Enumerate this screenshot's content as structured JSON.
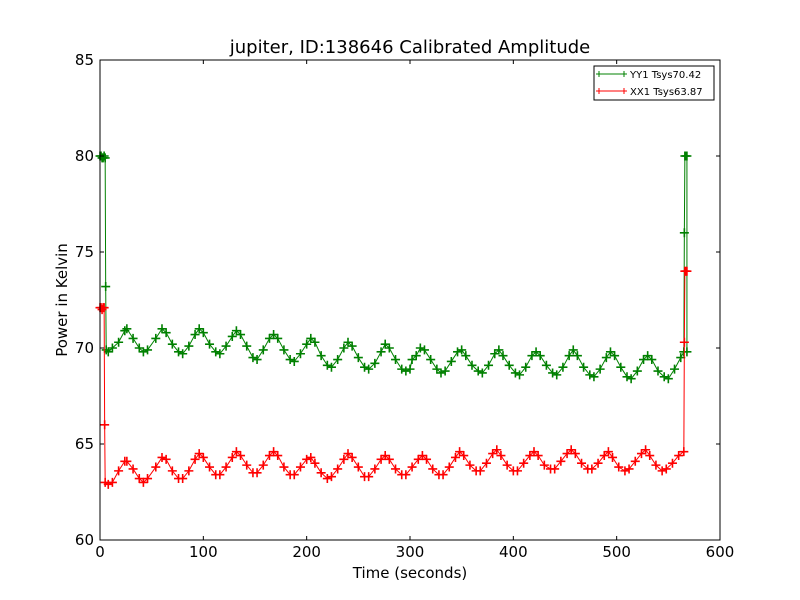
{
  "chart_data": {
    "type": "line",
    "title": "jupiter, ID:138646 Calibrated Amplitude",
    "xlabel": "Time (seconds)",
    "ylabel": "Power in Kelvin",
    "xlim": [
      0,
      600
    ],
    "ylim": [
      60,
      85
    ],
    "xticks": [
      0,
      100,
      200,
      300,
      400,
      500,
      600
    ],
    "yticks": [
      60,
      65,
      70,
      75,
      80,
      85
    ],
    "grid": false,
    "legend_position": "top-right",
    "series": [
      {
        "name": "YY1 Tsys70.42",
        "color": "#008000",
        "marker": "+",
        "points": [
          [
            0,
            80.0
          ],
          [
            1,
            80.0
          ],
          [
            2,
            79.9
          ],
          [
            3,
            79.9
          ],
          [
            4,
            80.0
          ],
          [
            5,
            79.9
          ],
          [
            5.5,
            73.2
          ],
          [
            6,
            69.9
          ],
          [
            8,
            69.8
          ],
          [
            12,
            70.0
          ],
          [
            18,
            70.3
          ],
          [
            24,
            70.9
          ],
          [
            26,
            71.0
          ],
          [
            32,
            70.5
          ],
          [
            38,
            70.0
          ],
          [
            42,
            69.8
          ],
          [
            46,
            69.9
          ],
          [
            54,
            70.5
          ],
          [
            60,
            71.0
          ],
          [
            64,
            70.8
          ],
          [
            70,
            70.2
          ],
          [
            76,
            69.8
          ],
          [
            80,
            69.7
          ],
          [
            86,
            70.1
          ],
          [
            92,
            70.7
          ],
          [
            96,
            71.0
          ],
          [
            100,
            70.8
          ],
          [
            106,
            70.2
          ],
          [
            112,
            69.8
          ],
          [
            116,
            69.7
          ],
          [
            122,
            70.1
          ],
          [
            128,
            70.6
          ],
          [
            132,
            70.9
          ],
          [
            136,
            70.7
          ],
          [
            142,
            70.1
          ],
          [
            148,
            69.5
          ],
          [
            152,
            69.4
          ],
          [
            158,
            69.9
          ],
          [
            164,
            70.5
          ],
          [
            168,
            70.7
          ],
          [
            172,
            70.5
          ],
          [
            178,
            69.9
          ],
          [
            184,
            69.4
          ],
          [
            188,
            69.3
          ],
          [
            194,
            69.7
          ],
          [
            200,
            70.2
          ],
          [
            204,
            70.5
          ],
          [
            208,
            70.3
          ],
          [
            214,
            69.6
          ],
          [
            220,
            69.1
          ],
          [
            224,
            69.0
          ],
          [
            230,
            69.4
          ],
          [
            236,
            70.0
          ],
          [
            240,
            70.3
          ],
          [
            244,
            70.1
          ],
          [
            250,
            69.5
          ],
          [
            256,
            69.0
          ],
          [
            260,
            68.9
          ],
          [
            266,
            69.2
          ],
          [
            272,
            69.8
          ],
          [
            276,
            70.2
          ],
          [
            280,
            70.0
          ],
          [
            286,
            69.4
          ],
          [
            292,
            68.9
          ],
          [
            296,
            68.8
          ],
          [
            300,
            68.9
          ],
          [
            302,
            69.4
          ],
          [
            306,
            69.6
          ],
          [
            310,
            70.0
          ],
          [
            314,
            69.9
          ],
          [
            320,
            69.4
          ],
          [
            326,
            68.9
          ],
          [
            330,
            68.7
          ],
          [
            334,
            68.8
          ],
          [
            340,
            69.3
          ],
          [
            346,
            69.8
          ],
          [
            350,
            69.9
          ],
          [
            354,
            69.6
          ],
          [
            360,
            69.1
          ],
          [
            366,
            68.8
          ],
          [
            370,
            68.7
          ],
          [
            376,
            69.1
          ],
          [
            382,
            69.7
          ],
          [
            386,
            69.9
          ],
          [
            390,
            69.6
          ],
          [
            396,
            69.1
          ],
          [
            402,
            68.7
          ],
          [
            406,
            68.6
          ],
          [
            412,
            69.0
          ],
          [
            418,
            69.6
          ],
          [
            422,
            69.8
          ],
          [
            426,
            69.6
          ],
          [
            432,
            69.1
          ],
          [
            438,
            68.7
          ],
          [
            442,
            68.6
          ],
          [
            448,
            69.0
          ],
          [
            454,
            69.6
          ],
          [
            458,
            69.9
          ],
          [
            462,
            69.6
          ],
          [
            468,
            69.0
          ],
          [
            474,
            68.6
          ],
          [
            478,
            68.5
          ],
          [
            484,
            68.9
          ],
          [
            490,
            69.5
          ],
          [
            494,
            69.8
          ],
          [
            498,
            69.6
          ],
          [
            504,
            69.0
          ],
          [
            510,
            68.5
          ],
          [
            514,
            68.4
          ],
          [
            520,
            68.8
          ],
          [
            526,
            69.4
          ],
          [
            530,
            69.6
          ],
          [
            534,
            69.4
          ],
          [
            540,
            68.8
          ],
          [
            546,
            68.5
          ],
          [
            550,
            68.4
          ],
          [
            556,
            68.9
          ],
          [
            562,
            69.5
          ],
          [
            565,
            69.8
          ],
          [
            565.5,
            76.0
          ],
          [
            566,
            80.0
          ],
          [
            567,
            80.0
          ],
          [
            568,
            80.0
          ],
          [
            568,
            69.8
          ]
        ]
      },
      {
        "name": "XX1 Tsys63.87",
        "color": "#ff0000",
        "marker": "+",
        "points": [
          [
            0,
            72.1
          ],
          [
            1,
            72.1
          ],
          [
            2,
            72.0
          ],
          [
            3,
            72.1
          ],
          [
            4,
            72.1
          ],
          [
            4.5,
            66.0
          ],
          [
            5,
            63.0
          ],
          [
            8,
            62.9
          ],
          [
            12,
            63.0
          ],
          [
            18,
            63.6
          ],
          [
            24,
            64.1
          ],
          [
            26,
            64.1
          ],
          [
            32,
            63.7
          ],
          [
            38,
            63.2
          ],
          [
            42,
            63.0
          ],
          [
            46,
            63.2
          ],
          [
            54,
            63.8
          ],
          [
            60,
            64.3
          ],
          [
            64,
            64.2
          ],
          [
            70,
            63.6
          ],
          [
            76,
            63.2
          ],
          [
            80,
            63.2
          ],
          [
            86,
            63.6
          ],
          [
            92,
            64.2
          ],
          [
            96,
            64.5
          ],
          [
            100,
            64.3
          ],
          [
            106,
            63.8
          ],
          [
            112,
            63.4
          ],
          [
            116,
            63.4
          ],
          [
            122,
            63.8
          ],
          [
            128,
            64.3
          ],
          [
            132,
            64.6
          ],
          [
            136,
            64.4
          ],
          [
            142,
            63.9
          ],
          [
            148,
            63.5
          ],
          [
            152,
            63.5
          ],
          [
            158,
            63.9
          ],
          [
            164,
            64.4
          ],
          [
            168,
            64.6
          ],
          [
            172,
            64.4
          ],
          [
            178,
            63.8
          ],
          [
            184,
            63.4
          ],
          [
            188,
            63.4
          ],
          [
            194,
            63.8
          ],
          [
            200,
            64.2
          ],
          [
            204,
            64.3
          ],
          [
            208,
            64.0
          ],
          [
            214,
            63.5
          ],
          [
            220,
            63.2
          ],
          [
            224,
            63.3
          ],
          [
            230,
            63.7
          ],
          [
            236,
            64.2
          ],
          [
            240,
            64.5
          ],
          [
            244,
            64.3
          ],
          [
            250,
            63.8
          ],
          [
            256,
            63.3
          ],
          [
            260,
            63.3
          ],
          [
            266,
            63.7
          ],
          [
            272,
            64.2
          ],
          [
            276,
            64.4
          ],
          [
            280,
            64.2
          ],
          [
            286,
            63.7
          ],
          [
            292,
            63.4
          ],
          [
            296,
            63.4
          ],
          [
            302,
            63.8
          ],
          [
            308,
            64.2
          ],
          [
            312,
            64.4
          ],
          [
            316,
            64.2
          ],
          [
            322,
            63.7
          ],
          [
            328,
            63.4
          ],
          [
            332,
            63.4
          ],
          [
            338,
            63.8
          ],
          [
            344,
            64.3
          ],
          [
            348,
            64.6
          ],
          [
            352,
            64.4
          ],
          [
            358,
            63.9
          ],
          [
            364,
            63.6
          ],
          [
            368,
            63.6
          ],
          [
            374,
            64.0
          ],
          [
            380,
            64.5
          ],
          [
            384,
            64.7
          ],
          [
            388,
            64.4
          ],
          [
            394,
            63.9
          ],
          [
            400,
            63.6
          ],
          [
            404,
            63.6
          ],
          [
            410,
            64.0
          ],
          [
            416,
            64.4
          ],
          [
            420,
            64.6
          ],
          [
            424,
            64.4
          ],
          [
            430,
            63.9
          ],
          [
            436,
            63.7
          ],
          [
            440,
            63.7
          ],
          [
            446,
            64.1
          ],
          [
            452,
            64.5
          ],
          [
            456,
            64.7
          ],
          [
            460,
            64.5
          ],
          [
            466,
            64.0
          ],
          [
            472,
            63.7
          ],
          [
            476,
            63.7
          ],
          [
            482,
            64.0
          ],
          [
            488,
            64.4
          ],
          [
            492,
            64.6
          ],
          [
            496,
            64.3
          ],
          [
            502,
            63.8
          ],
          [
            508,
            63.6
          ],
          [
            512,
            63.7
          ],
          [
            518,
            64.1
          ],
          [
            524,
            64.5
          ],
          [
            528,
            64.7
          ],
          [
            532,
            64.4
          ],
          [
            538,
            63.9
          ],
          [
            544,
            63.6
          ],
          [
            548,
            63.7
          ],
          [
            554,
            64.0
          ],
          [
            560,
            64.4
          ],
          [
            565,
            64.6
          ],
          [
            565.5,
            70.3
          ],
          [
            566,
            74.0
          ],
          [
            567,
            74.0
          ],
          [
            568,
            74.0
          ]
        ]
      }
    ]
  }
}
